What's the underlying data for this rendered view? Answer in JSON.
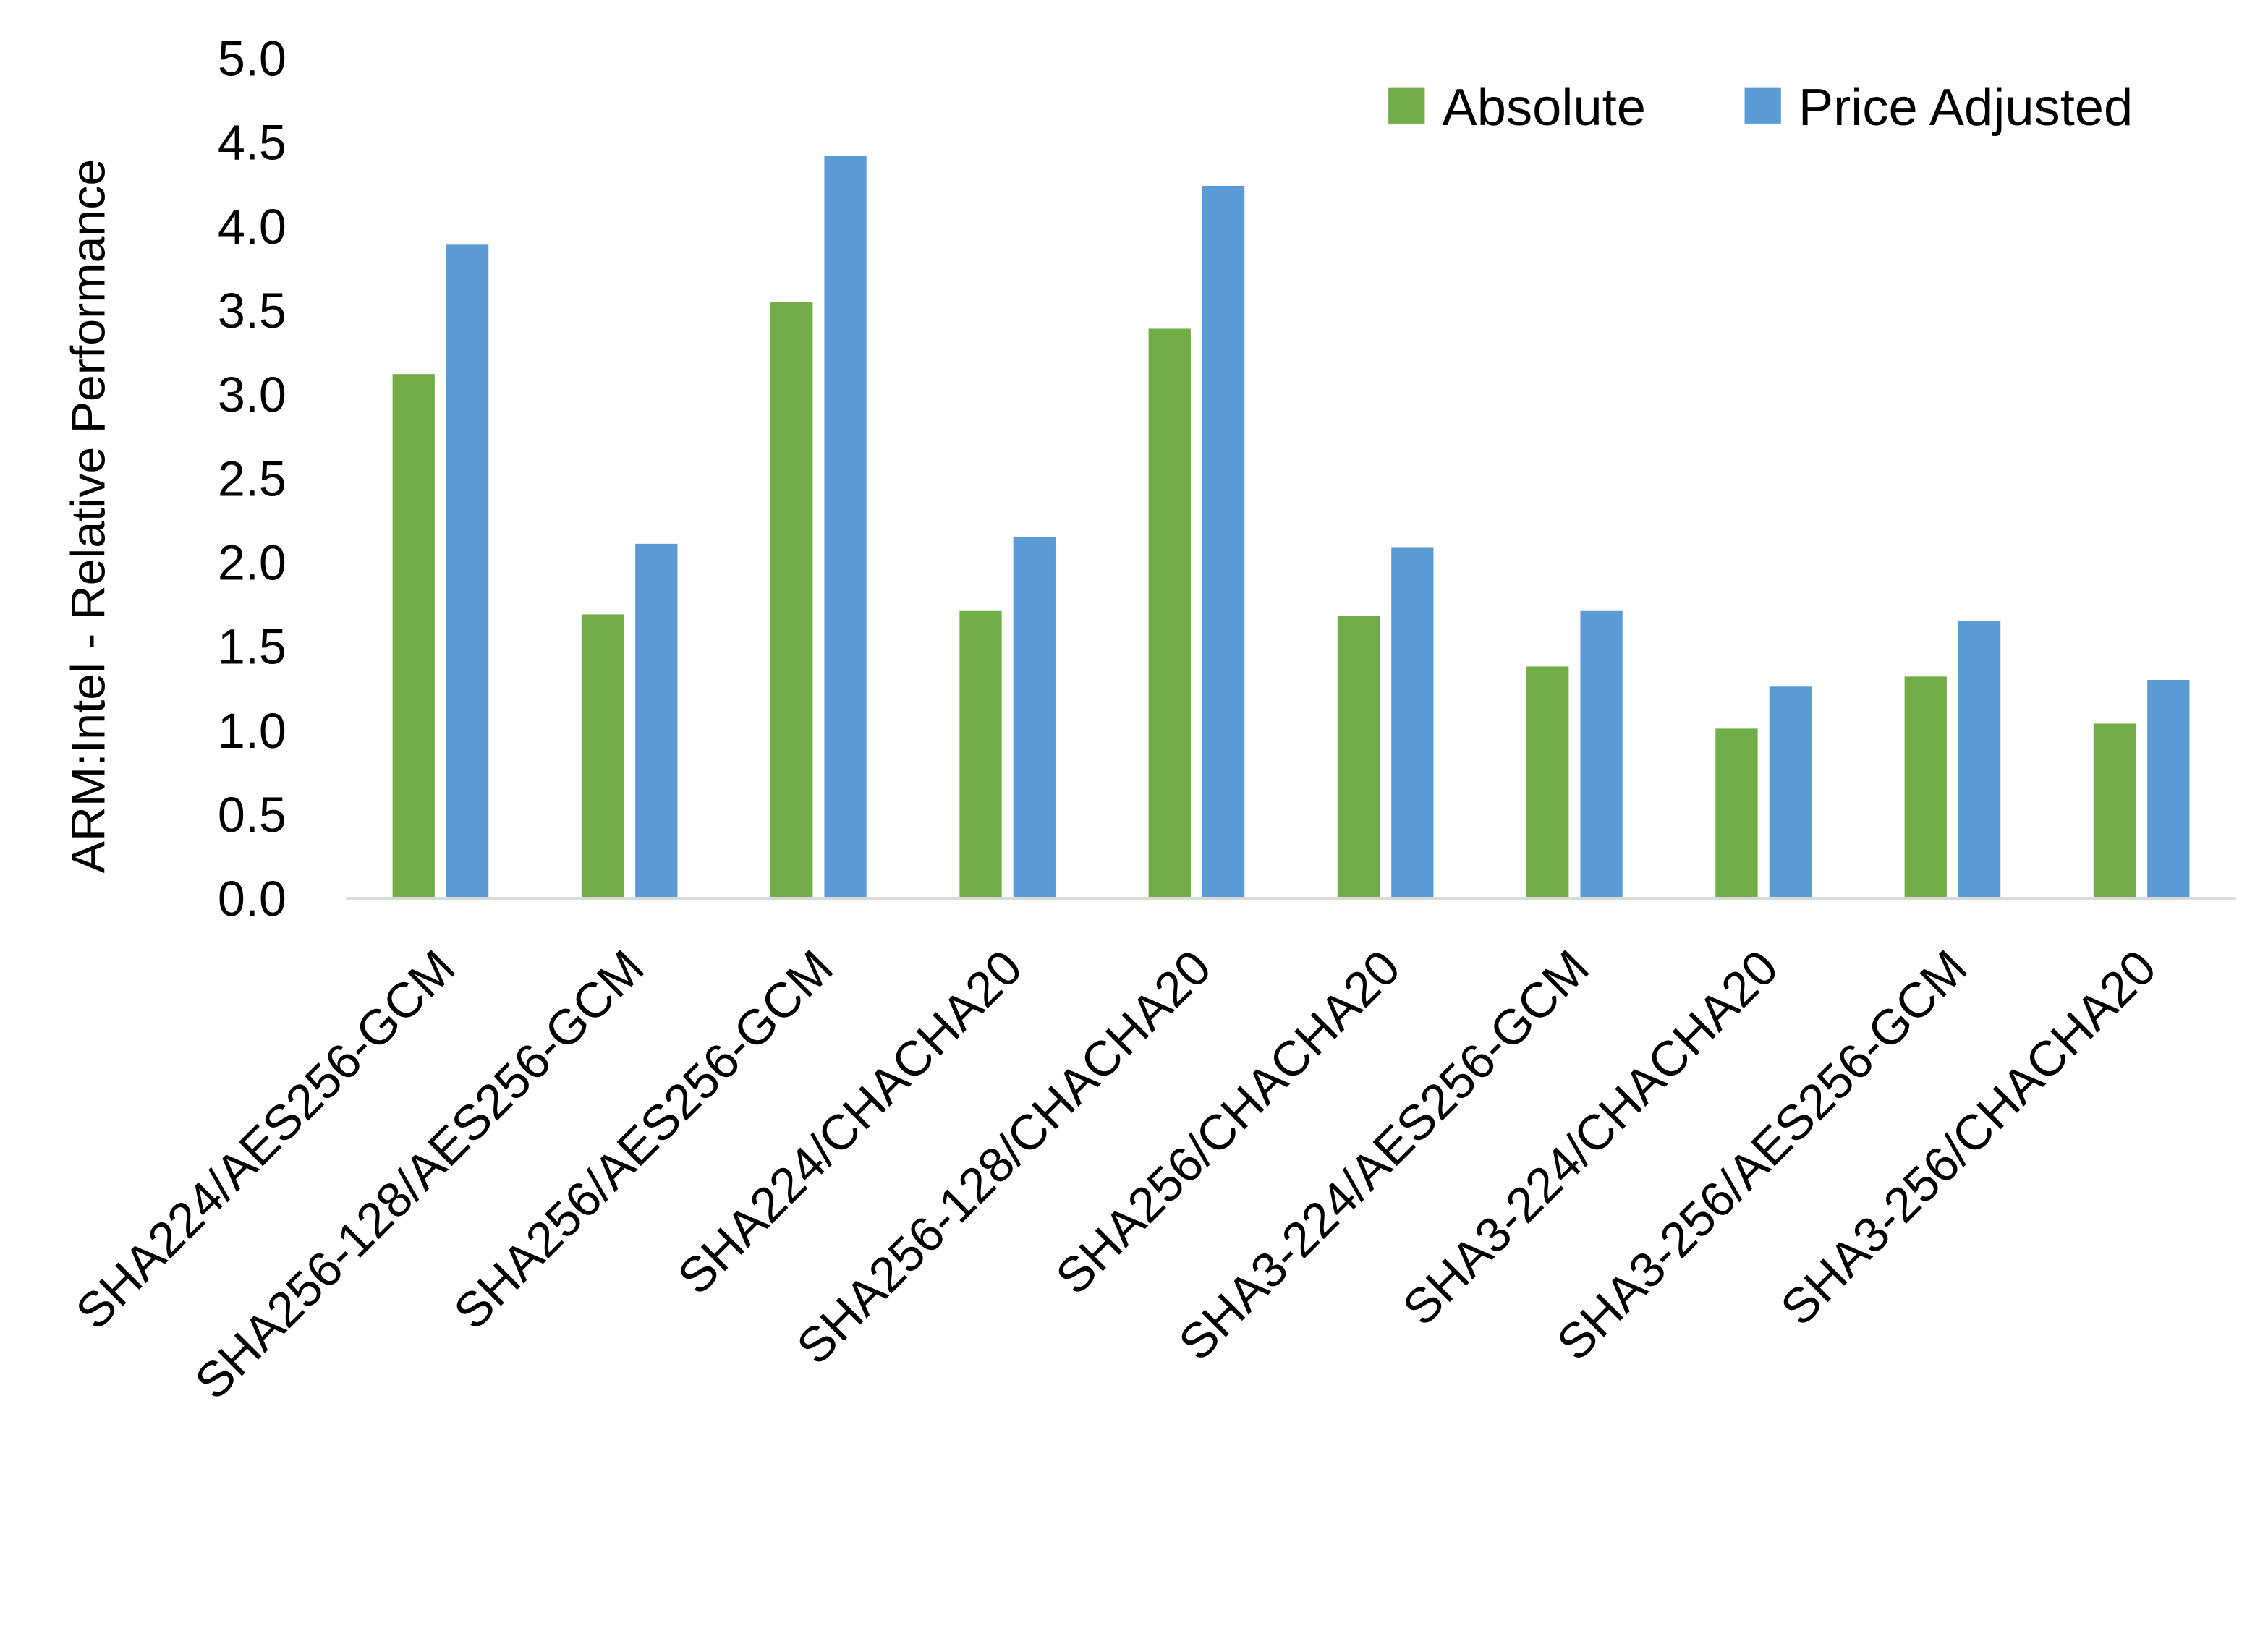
{
  "chart_data": {
    "type": "bar",
    "title": "",
    "xlabel": "",
    "ylabel": "ARM:Intel - Relative Performance",
    "ylim": [
      0,
      5
    ],
    "yticks": [
      "0.0",
      "0.5",
      "1.0",
      "1.5",
      "2.0",
      "2.5",
      "3.0",
      "3.5",
      "4.0",
      "4.5",
      "5.0"
    ],
    "grid": false,
    "legend_position": "top-right",
    "categories": [
      "SHA224/AES256-GCM",
      "SHA256-128/AES256-GCM",
      "SHA256/AES256-GCM",
      "SHA224/CHACHA20",
      "SHA256-128/CHACHA20",
      "SHA256/CHACHA20",
      "SHA3-224/AES256-GCM",
      "SHA3-224/CHACHA20",
      "SHA3-256/AES256-GCM",
      "SHA3-256/CHACHA20"
    ],
    "series": [
      {
        "name": "Absolute",
        "color": "#70AD47",
        "values": [
          3.12,
          1.69,
          3.55,
          1.71,
          3.39,
          1.68,
          1.38,
          1.01,
          1.32,
          1.04
        ]
      },
      {
        "name": "Price Adjusted",
        "color": "#5B9BD5",
        "values": [
          3.89,
          2.11,
          4.42,
          2.15,
          4.24,
          2.09,
          1.71,
          1.26,
          1.65,
          1.3
        ]
      }
    ]
  }
}
